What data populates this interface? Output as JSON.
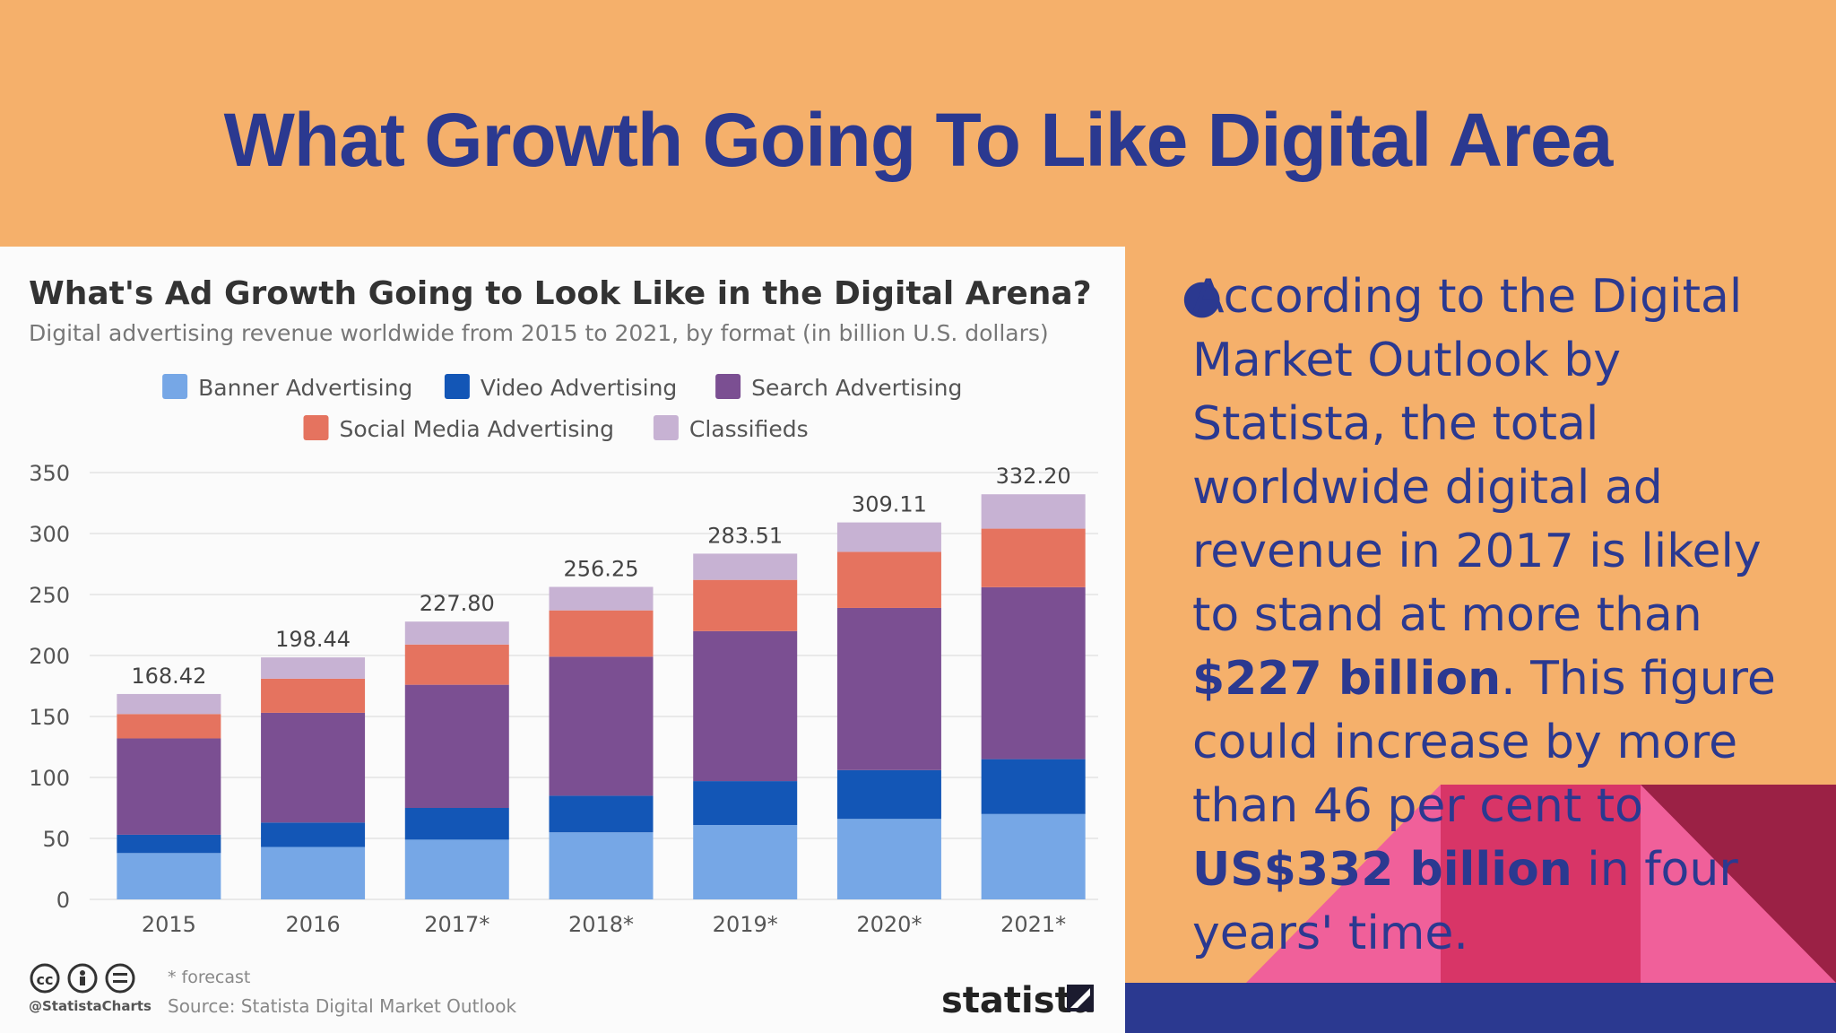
{
  "slide": {
    "title": "What Growth Going To Like Digital Area"
  },
  "bullet": {
    "part1": "According to the Digital Market Outlook by Statista, the total worldwide digital ad revenue in 2017 is likely to stand at more than ",
    "bold1": "$227 billion",
    "part2": ". This figure could increase by more than 46 per cent to ",
    "bold2": "US$332 billion",
    "part3": " in four years' time."
  },
  "colors": {
    "background": "#f5b06b",
    "title": "#2b3990",
    "deco_pink": "#f0609a",
    "deco_magenta": "#d83567",
    "deco_dark": "#9b2145",
    "footer": "#2b3990"
  },
  "chart_data": {
    "type": "bar",
    "stacked": true,
    "title": "What's Ad Growth Going to Look Like in the Digital Arena?",
    "subtitle": "Digital advertising revenue worldwide from 2015 to 2021, by format (in billion U.S. dollars)",
    "categories": [
      "2015",
      "2016",
      "2017*",
      "2018*",
      "2019*",
      "2020*",
      "2021*"
    ],
    "series": [
      {
        "name": "Banner Advertising",
        "color": "#76a7e6",
        "values": [
          38,
          43,
          49,
          55,
          61,
          66,
          70
        ]
      },
      {
        "name": "Video Advertising",
        "color": "#1356b6",
        "values": [
          15,
          20,
          26,
          30,
          36,
          40,
          45
        ]
      },
      {
        "name": "Search Advertising",
        "color": "#7b4f92",
        "values": [
          79,
          90,
          101,
          114,
          123,
          133,
          141
        ]
      },
      {
        "name": "Social Media Advertising",
        "color": "#e5735f",
        "values": [
          20,
          28,
          33,
          38,
          42,
          46,
          48
        ]
      },
      {
        "name": "Classifieds",
        "color": "#c7b2d3",
        "values": [
          16.42,
          17.44,
          18.8,
          19.25,
          21.51,
          24.11,
          28.2
        ]
      }
    ],
    "totals": [
      "168.42",
      "198.44",
      "227.80",
      "256.25",
      "283.51",
      "309.11",
      "332.20"
    ],
    "ylim": [
      0,
      350
    ],
    "yticks": [
      0,
      50,
      100,
      150,
      200,
      250,
      300,
      350
    ],
    "grid": true,
    "legend_position": "top-center",
    "footnote": "* forecast",
    "source": "Source: Statista Digital Market Outlook",
    "handle": "@StatistaCharts",
    "brand": "statista"
  }
}
